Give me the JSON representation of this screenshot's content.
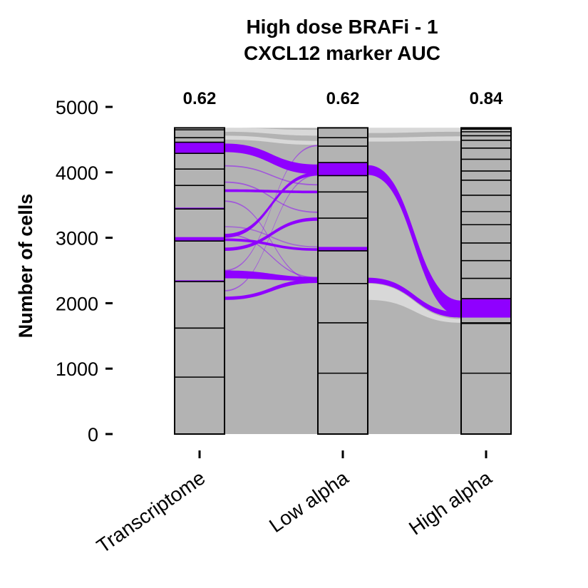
{
  "chart_data": {
    "type": "alluvial",
    "title": "High dose BRAFi - 1",
    "subtitle": "CXCL12 marker AUC",
    "ylabel": "Number of cells",
    "xlabel": "",
    "ylim": [
      0,
      5000
    ],
    "yticks": [
      0,
      1000,
      2000,
      3000,
      4000,
      5000
    ],
    "ytick_labels": [
      "0",
      "1000",
      "2000",
      "3000",
      "4000",
      "5000"
    ],
    "categories": [
      "Transcriptome",
      "Low alpha",
      "High alpha"
    ],
    "auc": [
      "0.62",
      "0.62",
      "0.84"
    ],
    "total_cells": 4680,
    "colors": {
      "highlight": "#8f00ff",
      "stratum": "#b3b3b3",
      "flow": "#b3b3b3",
      "border": "#000000"
    },
    "strata_boundaries": [
      [
        870,
        1620,
        2330,
        2950,
        3440,
        3800,
        4050,
        4290,
        4460,
        4530,
        4650
      ],
      [
        930,
        1700,
        2300,
        2800,
        3300,
        3700,
        3950,
        4150,
        4400,
        4530
      ],
      [
        930,
        1690,
        1700,
        2070,
        2380,
        2650,
        2920,
        3200,
        3400,
        3650,
        3880,
        4020,
        4200,
        4370,
        4490,
        4560,
        4620,
        4660
      ]
    ],
    "highlighted_strata": [
      [
        [
          4290,
          4460
        ],
        [
          2950,
          3010
        ],
        [
          3440,
          3460
        ],
        [
          2330,
          2350
        ]
      ],
      [
        [
          3950,
          4150
        ],
        [
          2800,
          2860
        ]
      ],
      [
        [
          1780,
          2070
        ]
      ]
    ],
    "highlighted_flows": [
      {
        "from": [
          4310,
          4440
        ],
        "to": [
          3970,
          4120
        ],
        "opacity": 1.0
      },
      {
        "from": [
          3960,
          4110
        ],
        "to": [
          1800,
          2040
        ],
        "opacity": 1.0
      },
      {
        "from": [
          2380,
          2500
        ],
        "to": [
          2340,
          2400
        ],
        "opacity": 1.0
      },
      {
        "from": [
          2310,
          2390
        ],
        "to": [
          1780,
          1860
        ],
        "opacity": 1.0
      },
      {
        "from": [
          2050,
          2100
        ],
        "to": [
          2310,
          2370
        ],
        "opacity": 1.0
      },
      {
        "from": [
          2800,
          2850
        ],
        "to": [
          3260,
          3310
        ],
        "opacity": 1.0
      },
      {
        "from": [
          3000,
          3060
        ],
        "to": [
          3950,
          4000
        ],
        "opacity": 1.0
      },
      {
        "from": [
          2950,
          2990
        ],
        "to": [
          2800,
          2840
        ],
        "opacity": 1.0
      },
      {
        "from": [
          3700,
          3740
        ],
        "to": [
          3680,
          3720
        ],
        "opacity": 1.0
      },
      {
        "from": [
          3840,
          3860
        ],
        "to": [
          3380,
          3400
        ],
        "opacity": 0.5
      },
      {
        "from": [
          3550,
          3570
        ],
        "to": [
          2330,
          2350
        ],
        "opacity": 0.5
      },
      {
        "from": [
          2180,
          2200
        ],
        "to": [
          3950,
          3970
        ],
        "opacity": 0.5
      },
      {
        "from": [
          2490,
          2510
        ],
        "to": [
          4400,
          4420
        ],
        "opacity": 0.5
      },
      {
        "from": [
          3040,
          3060
        ],
        "to": [
          2380,
          2400
        ],
        "opacity": 0.5
      },
      {
        "from": [
          4090,
          4110
        ],
        "to": [
          3800,
          3820
        ],
        "opacity": 0.5
      },
      {
        "from": [
          3160,
          3180
        ],
        "to": [
          2850,
          2870
        ],
        "opacity": 0.4
      }
    ]
  }
}
